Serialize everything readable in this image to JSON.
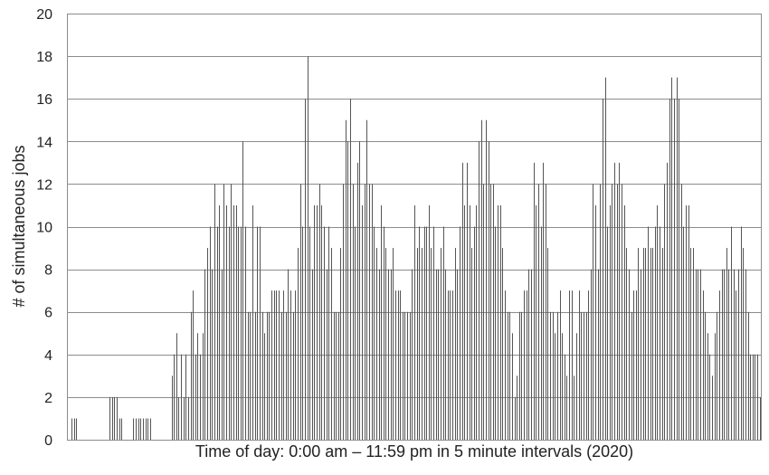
{
  "chart_data": {
    "type": "bar",
    "title": "",
    "xlabel": "Time of day: 0:00 am – 11:59 pm in 5 minute intervals (2020)",
    "ylabel": "# of simultaneous jobs",
    "ylim": [
      0,
      20
    ],
    "yticks": [
      0,
      2,
      4,
      6,
      8,
      10,
      12,
      14,
      16,
      18,
      20
    ],
    "grid": true,
    "interval_minutes": 5,
    "values": [
      0,
      1,
      1,
      1,
      0,
      0,
      0,
      0,
      0,
      0,
      0,
      0,
      0,
      0,
      0,
      0,
      0,
      2,
      2,
      2,
      2,
      1,
      1,
      0,
      0,
      0,
      0,
      1,
      1,
      1,
      1,
      1,
      1,
      1,
      1,
      0,
      0,
      0,
      0,
      0,
      0,
      0,
      0,
      3,
      4,
      5,
      2,
      4,
      2,
      4,
      2,
      6,
      7,
      4,
      5,
      4,
      5,
      8,
      9,
      10,
      8,
      12,
      10,
      11,
      8,
      12,
      11,
      10,
      12,
      11,
      11,
      10,
      10,
      14,
      10,
      6,
      6,
      11,
      6,
      10,
      10,
      6,
      5,
      6,
      6,
      7,
      7,
      7,
      7,
      6,
      7,
      6,
      8,
      7,
      6,
      7,
      9,
      12,
      10,
      16,
      18,
      10,
      8,
      11,
      11,
      12,
      11,
      10,
      8,
      10,
      9,
      6,
      6,
      6,
      9,
      12,
      15,
      14,
      16,
      12,
      10,
      13,
      14,
      11,
      12,
      15,
      12,
      12,
      10,
      9,
      8,
      11,
      10,
      9,
      8,
      8,
      9,
      7,
      7,
      7,
      6,
      6,
      6,
      6,
      8,
      11,
      9,
      10,
      9,
      10,
      10,
      11,
      9,
      10,
      8,
      8,
      9,
      10,
      8,
      7,
      7,
      7,
      9,
      8,
      10,
      13,
      11,
      13,
      11,
      9,
      10,
      11,
      14,
      15,
      12,
      15,
      14,
      12,
      12,
      10,
      11,
      11,
      9,
      7,
      6,
      6,
      5,
      2,
      3,
      6,
      6,
      7,
      7,
      8,
      8,
      13,
      11,
      12,
      10,
      13,
      12,
      9,
      6,
      6,
      5,
      6,
      7,
      5,
      4,
      3,
      7,
      7,
      3,
      5,
      7,
      6,
      6,
      6,
      7,
      8,
      12,
      11,
      8,
      12,
      16,
      17,
      10,
      11,
      12,
      13,
      12,
      13,
      12,
      11,
      9,
      8,
      6,
      7,
      7,
      9,
      8,
      9,
      9,
      10,
      9,
      9,
      10,
      11,
      10,
      9,
      12,
      13,
      16,
      17,
      16,
      17,
      16,
      12,
      10,
      11,
      11,
      9,
      9,
      8,
      8,
      8,
      7,
      6,
      5,
      4,
      3,
      5,
      6,
      7,
      8,
      8,
      9,
      8,
      10,
      8,
      7,
      8,
      10,
      9,
      8,
      6,
      4,
      4,
      4,
      4,
      2
    ]
  }
}
